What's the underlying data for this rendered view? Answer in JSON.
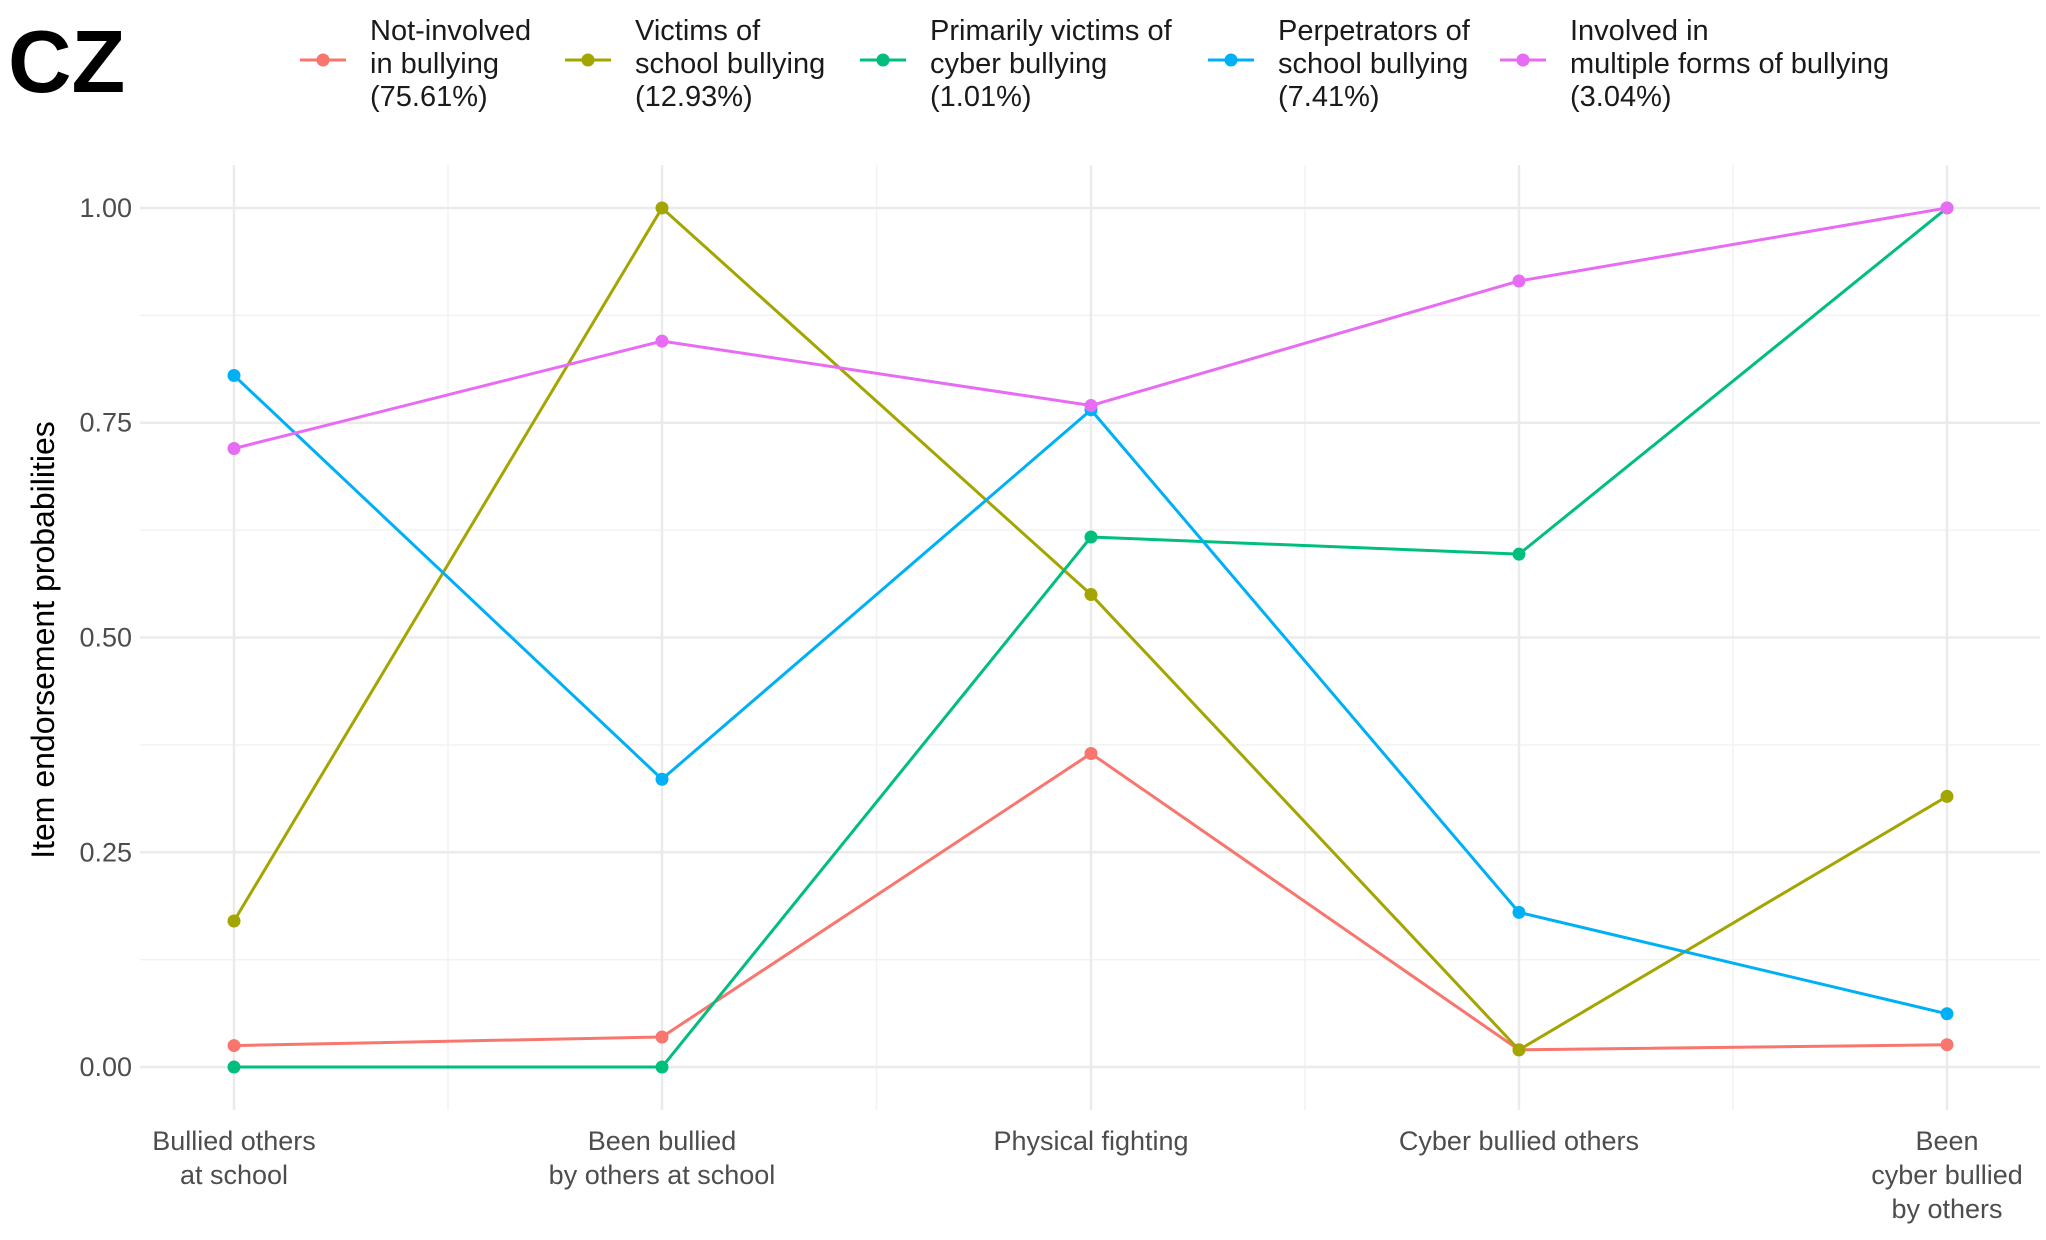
{
  "panel_label": "CZ",
  "chart_data": {
    "type": "line",
    "title": "",
    "xlabel": "",
    "ylabel": "Item endorsement probabilities",
    "ylim": [
      -0.05,
      1.05
    ],
    "grid": true,
    "legend_position": "top",
    "categories": [
      [
        "Bullied others",
        "at school"
      ],
      [
        "Been bullied",
        "by others at school"
      ],
      [
        "Physical fighting"
      ],
      [
        "Cyber bullied others"
      ],
      [
        "Been",
        "cyber bullied",
        "by others"
      ]
    ],
    "y_ticks": [
      0.0,
      0.25,
      0.5,
      0.75,
      1.0
    ],
    "y_tick_labels": [
      "0.00",
      "0.25",
      "0.50",
      "0.75",
      "1.00"
    ],
    "series": [
      {
        "name": [
          "Not-involved",
          "in bullying",
          "(75.61%)"
        ],
        "color": "#F8766D",
        "values": [
          0.025,
          0.035,
          0.365,
          0.02,
          0.026
        ]
      },
      {
        "name": [
          "Victims of",
          "school bullying",
          "(12.93%)"
        ],
        "color": "#A3A500",
        "values": [
          0.17,
          1.0,
          0.55,
          0.02,
          0.315
        ]
      },
      {
        "name": [
          "Primarily victims of",
          "cyber bullying",
          "(1.01%)"
        ],
        "color": "#00BF7D",
        "values": [
          0.0,
          0.0,
          0.617,
          0.597,
          1.0
        ]
      },
      {
        "name": [
          "Perpetrators of",
          "school bullying",
          "(7.41%)"
        ],
        "color": "#00B0F6",
        "values": [
          0.805,
          0.335,
          0.765,
          0.18,
          0.062
        ]
      },
      {
        "name": [
          "Involved in",
          "multiple forms of bullying",
          "(3.04%)"
        ],
        "color": "#E76BF3",
        "values": [
          0.72,
          0.845,
          0.77,
          0.915,
          1.0
        ]
      }
    ]
  }
}
